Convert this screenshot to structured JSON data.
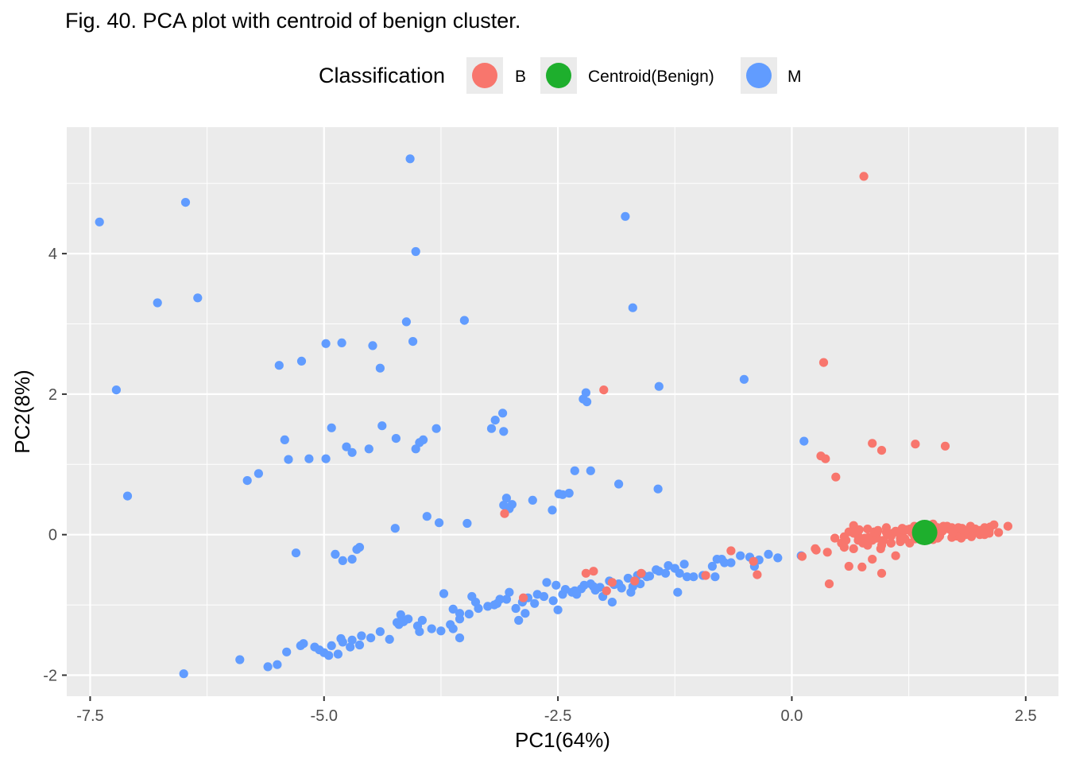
{
  "chart_data": {
    "type": "scatter",
    "title": "Fig. 40. PCA plot with centroid of benign cluster.",
    "xlabel": "PC1(64%)",
    "ylabel": "PC2(8%)",
    "xlim": [
      -7.75,
      2.85
    ],
    "ylim": [
      -2.3,
      5.8
    ],
    "x_ticks": [
      -7.5,
      -5.0,
      -2.5,
      0.0,
      2.5
    ],
    "x_tick_labels": [
      "-7.5",
      "-5.0",
      "-2.5",
      "0.0",
      "2.5"
    ],
    "y_ticks": [
      -2,
      0,
      2,
      4
    ],
    "y_tick_labels": [
      "-2",
      "0",
      "2",
      "4"
    ],
    "grid": true,
    "legend": {
      "title": "Classification",
      "position": "top",
      "entries": [
        "B",
        "Centroid(Benign)",
        "M"
      ]
    },
    "colors": {
      "B": "#F8766D",
      "Centroid(Benign)": "#1EAF2D",
      "M": "#619CFF"
    },
    "series": [
      {
        "name": "M",
        "x": [
          -7.4,
          -6.48,
          -6.35,
          -6.78,
          -7.22,
          -7.1,
          -5.82,
          -5.7,
          -5.48,
          -5.42,
          -5.38,
          -5.24,
          -5.3,
          -5.16,
          -4.98,
          -4.98,
          -4.81,
          -4.92,
          -4.8,
          -4.88,
          -4.76,
          -4.7,
          -4.62,
          -4.7,
          -4.65,
          -4.52,
          -4.48,
          -4.4,
          -4.38,
          -4.23,
          -4.24,
          -4.02,
          -3.98,
          -3.94,
          -3.8,
          -3.77,
          -3.9,
          -4.02,
          -4.12,
          -4.05,
          -4.08,
          -3.5,
          -3.47,
          -3.21,
          -3.17,
          -3.09,
          -3.08,
          -3.05,
          -3.08,
          -3.02,
          -2.99,
          -2.77,
          -2.56,
          -2.49,
          -2.45,
          -2.38,
          -2.32,
          -2.23,
          -2.19,
          -2.2,
          -2.15,
          -1.85,
          -1.78,
          -1.7,
          -1.42,
          -1.43,
          -0.51,
          0.13,
          -5.9,
          -5.6,
          -5.5,
          -5.4,
          -5.25,
          -5.1,
          -5.05,
          -5.0,
          -4.92,
          -4.85,
          -4.8,
          -4.7,
          -4.6,
          -4.5,
          -4.4,
          -4.3,
          -4.2,
          -4.15,
          -4.1,
          -4.0,
          -3.95,
          -3.85,
          -3.75,
          -3.65,
          -3.55,
          -3.45,
          -3.35,
          -3.25,
          -3.15,
          -3.05,
          -2.95,
          -2.85,
          -2.75,
          -2.65,
          -2.55,
          -2.45,
          -2.35,
          -2.25,
          -2.15,
          -2.05,
          -1.95,
          -1.85,
          -1.75,
          -1.65,
          -1.55,
          -1.45,
          -1.35,
          -1.25,
          -1.15,
          -1.05,
          -0.95,
          -0.85,
          -0.75,
          -0.65,
          -0.55,
          -0.45,
          -0.35,
          -0.25,
          -0.15,
          0.1,
          -6.5,
          -5.22,
          -4.82,
          -4.62,
          -3.55,
          -3.62,
          -3.98,
          -4.22,
          -4.18,
          -4.95,
          -4.72,
          -3.02,
          -2.82,
          -2.72,
          -2.62,
          -2.52,
          -2.42,
          -2.32,
          -2.22,
          -2.12,
          -2.02,
          -1.92,
          -1.82,
          -1.72,
          -1.62,
          -1.52,
          -1.42,
          -1.32,
          -1.22,
          -1.12,
          -0.82,
          -0.72,
          -3.72,
          -3.42,
          -3.18,
          -2.92,
          -3.62,
          -3.38,
          -3.12,
          -2.88,
          -3.55,
          -2.5,
          -2.3,
          -2.1,
          -1.9,
          -1.7,
          -1.6,
          -1.2,
          -0.8,
          -0.4
        ],
        "y": [
          4.45,
          4.73,
          3.37,
          3.3,
          2.06,
          0.55,
          0.77,
          0.87,
          2.41,
          1.35,
          1.07,
          2.47,
          -0.26,
          1.08,
          2.72,
          1.08,
          2.73,
          1.52,
          -0.37,
          -0.28,
          1.25,
          1.17,
          -0.18,
          -0.35,
          -0.21,
          1.22,
          2.69,
          2.37,
          1.55,
          1.37,
          0.09,
          1.22,
          1.31,
          1.35,
          1.51,
          0.17,
          0.26,
          4.03,
          3.03,
          2.75,
          5.35,
          3.05,
          0.16,
          1.51,
          1.63,
          1.73,
          1.47,
          0.52,
          0.42,
          0.37,
          0.43,
          0.49,
          0.35,
          0.58,
          0.57,
          0.59,
          0.91,
          1.93,
          1.89,
          2.02,
          0.91,
          0.72,
          4.53,
          3.23,
          2.11,
          0.65,
          2.21,
          1.33,
          -1.78,
          -1.88,
          -1.85,
          -1.67,
          -1.58,
          -1.6,
          -1.64,
          -1.68,
          -1.58,
          -1.7,
          -1.53,
          -1.5,
          -1.44,
          -1.47,
          -1.38,
          -1.49,
          -1.28,
          -1.24,
          -1.2,
          -1.3,
          -1.22,
          -1.34,
          -1.37,
          -1.28,
          -1.2,
          -1.13,
          -1.05,
          -1.02,
          -0.98,
          -0.92,
          -1.05,
          -1.12,
          -0.98,
          -0.88,
          -0.94,
          -0.85,
          -0.82,
          -0.77,
          -0.7,
          -0.75,
          -0.66,
          -0.7,
          -0.62,
          -0.58,
          -0.6,
          -0.5,
          -0.55,
          -0.48,
          -0.42,
          -0.6,
          -0.58,
          -0.45,
          -0.35,
          -0.4,
          -0.3,
          -0.32,
          -0.36,
          -0.28,
          -0.33,
          -0.3,
          -1.98,
          -1.55,
          -1.48,
          -1.57,
          -1.47,
          -1.34,
          -1.38,
          -1.25,
          -1.14,
          -1.72,
          -1.6,
          -0.82,
          -0.9,
          -0.85,
          -0.68,
          -0.72,
          -0.78,
          -0.8,
          -0.72,
          -0.74,
          -0.88,
          -0.96,
          -0.76,
          -0.82,
          -0.7,
          -0.59,
          -0.52,
          -0.44,
          -0.82,
          -0.6,
          -0.6,
          -0.4,
          -0.84,
          -0.88,
          -1.0,
          -1.22,
          -1.06,
          -0.96,
          -0.92,
          -0.96,
          -1.12,
          -1.07,
          -0.85,
          -0.79,
          -0.71,
          -0.74,
          -0.56,
          -0.55,
          -0.35,
          -0.45
        ],
        "color": "#619CFF"
      },
      {
        "name": "B",
        "x": [
          0.77,
          0.34,
          0.31,
          0.36,
          0.47,
          1.32,
          -2.01,
          -3.07,
          -2.87,
          -2.12,
          -1.98,
          -1.61,
          -0.65,
          -0.92,
          -0.41,
          -0.37,
          0.11,
          0.25,
          0.38,
          0.53,
          0.61,
          0.66,
          0.75,
          0.86,
          0.96,
          1.06,
          1.16,
          1.26,
          1.36,
          1.46,
          1.56,
          1.66,
          1.76,
          1.86,
          1.96,
          2.06,
          2.16,
          2.31,
          0.86,
          0.96,
          1.64,
          0.4,
          0.95,
          0.58,
          0.76,
          1.11,
          0.26,
          0.46,
          0.56,
          0.66,
          0.71,
          0.81,
          0.91,
          1.01,
          1.06,
          1.16,
          1.21,
          1.31,
          1.41,
          1.51,
          1.61,
          1.71,
          1.81,
          1.91,
          2.01,
          2.11,
          2.21,
          0.61,
          0.71,
          0.81,
          0.91,
          1.01,
          1.11,
          1.21,
          1.31,
          1.41,
          1.51,
          1.61,
          1.71,
          1.81,
          1.91,
          2.01,
          2.11,
          0.66,
          0.76,
          0.86,
          0.96,
          1.06,
          1.16,
          1.26,
          1.36,
          1.46,
          1.56,
          1.66,
          1.76,
          1.86,
          1.96,
          2.06,
          0.56,
          0.68,
          0.78,
          0.88,
          0.98,
          1.08,
          1.18,
          1.28,
          1.38,
          1.48,
          1.58,
          1.68,
          1.78,
          1.88,
          1.98,
          0.72,
          0.82,
          0.92,
          1.02,
          1.12,
          1.22,
          1.32,
          1.42,
          1.52,
          1.62,
          1.72,
          1.82,
          1.92,
          2.02,
          2.12,
          -2.2,
          -1.92,
          -1.68
        ],
        "y": [
          5.1,
          2.45,
          1.12,
          1.08,
          0.82,
          1.29,
          2.06,
          0.3,
          -0.9,
          -0.52,
          -0.8,
          -0.55,
          -0.23,
          -0.58,
          -0.38,
          -0.57,
          -0.31,
          -0.2,
          -0.25,
          -0.12,
          -0.45,
          0.13,
          -0.46,
          1.3,
          1.2,
          -0.12,
          0.02,
          0.08,
          0.05,
          -0.02,
          0.1,
          0.12,
          0.05,
          0.0,
          0.08,
          0.1,
          0.14,
          0.12,
          -0.35,
          -0.55,
          1.26,
          -0.7,
          -0.2,
          -0.08,
          -0.1,
          -0.3,
          -0.22,
          -0.05,
          -0.18,
          0.02,
          -0.08,
          -0.15,
          -0.05,
          0.03,
          -0.12,
          -0.05,
          0.06,
          -0.02,
          0.05,
          -0.07,
          0.07,
          -0.04,
          0.02,
          0.09,
          0.0,
          0.06,
          0.03,
          0.04,
          -0.02,
          0.08,
          0.02,
          0.1,
          0.05,
          -0.06,
          0.12,
          0.0,
          0.15,
          0.05,
          0.1,
          -0.05,
          0.12,
          0.06,
          0.02,
          -0.2,
          -0.12,
          -0.08,
          -0.15,
          -0.02,
          -0.1,
          -0.12,
          0.0,
          0.05,
          -0.05,
          0.1,
          -0.02,
          0.06,
          0.08,
          0.0,
          -0.03,
          0.05,
          -0.05,
          0.04,
          -0.08,
          0.02,
          0.09,
          0.03,
          -0.04,
          0.07,
          -0.02,
          0.08,
          0.1,
          0.04,
          0.03,
          0.07,
          -0.04,
          0.06,
          0.01,
          0.04,
          0.07,
          -0.06,
          0.13,
          0.06,
          0.12,
          0.02,
          0.09,
          -0.03,
          0.05,
          0.11,
          -0.55,
          -0.68,
          -0.66
        ],
        "color": "#F8766D"
      },
      {
        "name": "Centroid(Benign)",
        "x": [
          1.42
        ],
        "y": [
          0.03
        ],
        "color": "#1EAF2D"
      }
    ]
  }
}
